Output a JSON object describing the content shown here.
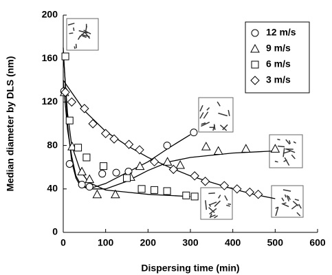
{
  "chart_data": {
    "type": "scatter",
    "xlabel": "Dispersing time (min)",
    "ylabel": "Median diameter  by DLS (nm)",
    "xlim": [
      0,
      600
    ],
    "xticks": [
      0,
      100,
      200,
      300,
      400,
      500,
      600
    ],
    "ylim": [
      0,
      200
    ],
    "yticks": [
      0,
      40,
      80,
      120,
      160,
      200
    ],
    "legend": "upper right",
    "series": [
      {
        "name": "12 m/s",
        "marker": "circle",
        "color": "#000000",
        "x": [
          2,
          15,
          44,
          62,
          92,
          125,
          154,
          245,
          308
        ],
        "values": [
          130,
          63,
          44,
          42,
          54,
          55,
          56,
          80,
          92
        ],
        "fit_x": [
          0,
          10,
          20,
          30,
          40,
          60,
          100,
          150,
          200,
          250,
          300
        ],
        "fit_values": [
          170,
          100,
          65,
          50,
          43,
          40,
          45,
          55,
          65,
          78,
          90
        ]
      },
      {
        "name": "9 m/s",
        "marker": "triangle",
        "color": "#000000",
        "x": [
          3,
          21,
          44,
          62,
          80,
          123,
          159,
          181,
          246,
          276,
          337,
          366,
          431,
          500
        ],
        "values": [
          129,
          79,
          56,
          49,
          35,
          35,
          51,
          61,
          65,
          62,
          79,
          75,
          77,
          77
        ],
        "fit_x": [
          0,
          10,
          20,
          30,
          40,
          60,
          100,
          150,
          200,
          250,
          300,
          400,
          500
        ],
        "fit_values": [
          140,
          95,
          70,
          52,
          45,
          40,
          40,
          47,
          57,
          65,
          69,
          73,
          75
        ]
      },
      {
        "name": "6 m/s",
        "marker": "square",
        "color": "#000000",
        "x": [
          5,
          15,
          35,
          55,
          95,
          150,
          185,
          215,
          245,
          290,
          310
        ],
        "values": [
          162,
          103,
          78,
          69,
          61,
          50,
          40,
          39,
          38,
          34,
          33
        ],
        "fit_x": [
          0,
          10,
          20,
          40,
          60,
          100,
          150,
          200,
          300
        ],
        "fit_values": [
          165,
          110,
          80,
          57,
          46,
          39,
          37,
          35,
          33
        ]
      },
      {
        "name": "3 m/s",
        "marker": "diamond",
        "color": "#000000",
        "x": [
          5,
          20,
          50,
          70,
          100,
          120,
          155,
          180,
          215,
          260,
          310,
          335,
          380,
          410,
          440,
          460
        ],
        "values": [
          129,
          120,
          114,
          100,
          91,
          86,
          81,
          76,
          65,
          58,
          52,
          47,
          43,
          40,
          37,
          35
        ],
        "fit_x": [
          0,
          50,
          100,
          150,
          200,
          250,
          300,
          350,
          400,
          450,
          500
        ],
        "fit_values": [
          140,
          112,
          93,
          80,
          69,
          60,
          52,
          46,
          40,
          35,
          31
        ]
      }
    ]
  }
}
